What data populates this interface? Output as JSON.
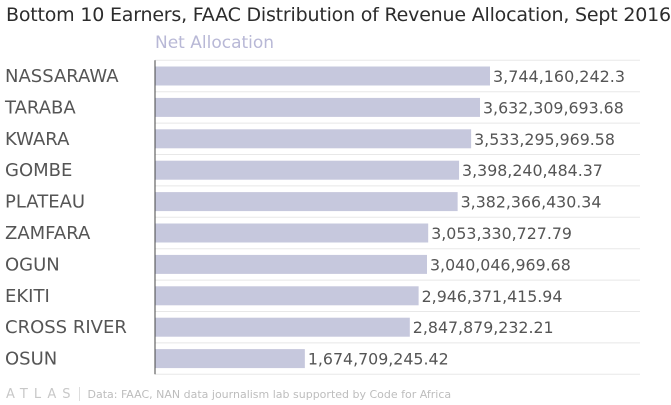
{
  "header": {
    "title": "Bottom 10 Earners, FAAC Distribution of Revenue Allocation, Sept 2016",
    "series_label": "Net Allocation"
  },
  "footer": {
    "brand": "ATLAS",
    "source": "Data: FAAC, NAN data journalism lab supported by Code for Africa"
  },
  "colors": {
    "bar": "#c6c8dd",
    "axis": "#444444",
    "grid": "#e8e8e8",
    "label": "#555555"
  },
  "chart_data": {
    "type": "bar",
    "orientation": "horizontal",
    "series": [
      {
        "name": "Net Allocation",
        "values": [
          3744160242.3,
          3632309693.68,
          3533295969.58,
          3398240484.37,
          3382366430.34,
          3053330727.79,
          3040046969.68,
          2946371415.94,
          2847879232.21,
          1674709245.42
        ]
      }
    ],
    "categories": [
      "NASSARAWA",
      "TARABA",
      "KWARA",
      "GOMBE",
      "PLATEAU",
      "ZAMFARA",
      "OGUN",
      "EKITI",
      "CROSS RIVER",
      "OSUN"
    ],
    "value_labels": [
      "3,744,160,242.3",
      "3,632,309,693.68",
      "3,533,295,969.58",
      "3,398,240,484.37",
      "3,382,366,430.34",
      "3,053,330,727.79",
      "3,040,046,969.68",
      "2,946,371,415.94",
      "2,847,879,232.21",
      "1,674,709,245.42"
    ],
    "xlim": [
      0,
      3744160242.3
    ],
    "grid": true,
    "legend": "top-left"
  }
}
